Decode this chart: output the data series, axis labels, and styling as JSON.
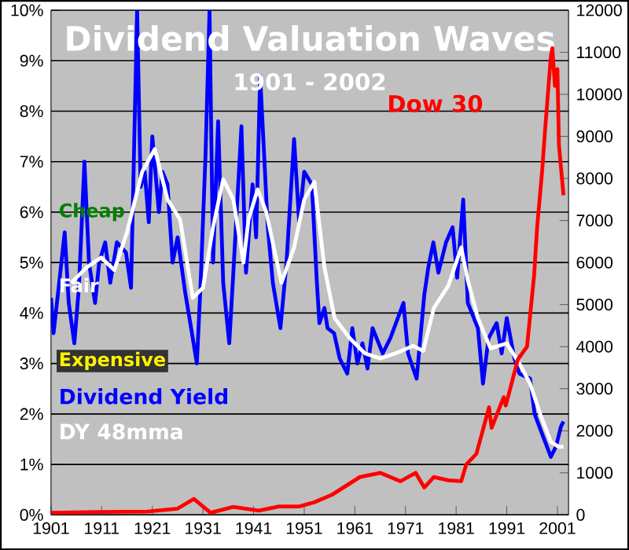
{
  "chart_data": {
    "type": "line",
    "title": "Dividend Valuation Waves",
    "subtitle": "1901 - 2002",
    "annotations": [
      "Cheap",
      "Fair",
      "Expensive"
    ],
    "legend": "left",
    "xlim": [
      1901,
      2003.2
    ],
    "xticks": [
      1901,
      1911,
      1921,
      1931,
      1941,
      1951,
      1961,
      1971,
      1981,
      1991,
      2001
    ],
    "ylim": [
      0,
      10
    ],
    "yticks": [
      {
        "value": 0,
        "label": "0%"
      },
      {
        "value": 1,
        "label": "1%"
      },
      {
        "value": 2,
        "label": "2%"
      },
      {
        "value": 3,
        "label": "3%"
      },
      {
        "value": 4,
        "label": "4%"
      },
      {
        "value": 5,
        "label": "5%"
      },
      {
        "value": 6,
        "label": "6%"
      },
      {
        "value": 7,
        "label": "7%"
      },
      {
        "value": 8,
        "label": "8%"
      },
      {
        "value": 9,
        "label": "9%"
      },
      {
        "value": 10,
        "label": "10%"
      }
    ],
    "y2lim": [
      0,
      12000
    ],
    "y2ticks": [
      0,
      1000,
      2000,
      3000,
      4000,
      5000,
      6000,
      7000,
      8000,
      9000,
      10000,
      11000,
      12000
    ],
    "grid": "y",
    "series": [
      {
        "name": "Dividend Yield",
        "color": "#0000ff",
        "x": [
          1901,
          1901.5,
          1902.5,
          1903.7,
          1904.5,
          1905.6,
          1906.5,
          1907.6,
          1908.5,
          1909.7,
          1910.5,
          1911.7,
          1912.7,
          1914,
          1915.8,
          1916.8,
          1918,
          1918.7,
          1919.5,
          1920.3,
          1921,
          1922.3,
          1923,
          1924,
          1925,
          1926,
          1927.5,
          1928.5,
          1929.8,
          1930.5,
          1931.5,
          1932.3,
          1933,
          1934,
          1935,
          1936.2,
          1937,
          1938.6,
          1939.5,
          1940.8,
          1941.5,
          1942.3,
          1943.8,
          1944.8,
          1946.3,
          1947.5,
          1949,
          1950,
          1951,
          1952.5,
          1953.5,
          1954,
          1955,
          1955.6,
          1956.9,
          1958,
          1959.5,
          1960.5,
          1961.5,
          1962.5,
          1963.5,
          1964.5,
          1966.5,
          1968,
          1970.6,
          1971.5,
          1973.2,
          1974.7,
          1975.5,
          1976.5,
          1977.5,
          1979,
          1980.3,
          1981.2,
          1982.4,
          1983.3,
          1985.3,
          1986.3,
          1987.4,
          1989,
          1990,
          1991,
          1992.5,
          1993.5,
          1995.6,
          1996.5,
          1998,
          1999.7,
          2000.7,
          2001.7,
          2002.2
        ],
        "values": [
          4.3,
          3.6,
          4.5,
          5.6,
          4.2,
          3.4,
          4.5,
          7.0,
          5.0,
          4.2,
          5.0,
          5.4,
          4.6,
          5.4,
          5.2,
          4.5,
          10,
          6.5,
          6.8,
          5.8,
          7.5,
          6.0,
          6.8,
          6.55,
          5.0,
          5.5,
          4.4,
          3.8,
          3.0,
          4.5,
          7.1,
          10,
          5.0,
          7.8,
          4.6,
          3.4,
          4.8,
          7.7,
          4.8,
          6.55,
          5.5,
          8.7,
          5.7,
          4.6,
          3.7,
          5.0,
          7.45,
          5.8,
          6.8,
          6.55,
          4.6,
          3.8,
          4.1,
          3.7,
          3.6,
          3.1,
          2.8,
          3.7,
          3.0,
          3.4,
          2.9,
          3.7,
          3.2,
          3.5,
          4.2,
          3.2,
          2.7,
          4.35,
          4.9,
          5.4,
          4.8,
          5.4,
          5.7,
          4.7,
          6.25,
          4.2,
          3.7,
          2.6,
          3.5,
          3.8,
          3.2,
          3.9,
          3.1,
          2.8,
          2.7,
          2.0,
          1.6,
          1.15,
          1.35,
          1.75,
          1.85
        ]
      },
      {
        "name": "DY 48mma",
        "color": "#ffffff",
        "x": [
          1905,
          1908,
          1910.9,
          1913.5,
          1916,
          1919,
          1921.5,
          1924,
          1926.5,
          1929,
          1931,
          1933,
          1935,
          1937,
          1939,
          1940,
          1941.8,
          1943.5,
          1946.5,
          1949,
          1951,
          1953,
          1955,
          1957,
          1960,
          1963,
          1966,
          1969,
          1972.5,
          1974.5,
          1976.6,
          1979.5,
          1982,
          1983.3,
          1985.3,
          1987.8,
          1991,
          1993.5,
          1995.6,
          1997.6,
          1999.7,
          2001.2,
          2002.2
        ],
        "values": [
          4.6,
          4.9,
          5.1,
          4.85,
          5.6,
          6.8,
          7.25,
          6.25,
          5.85,
          4.3,
          4.5,
          5.7,
          6.65,
          6.25,
          5.0,
          5.85,
          6.45,
          6.0,
          4.6,
          5.3,
          6.25,
          6.6,
          4.9,
          3.9,
          3.5,
          3.2,
          3.1,
          3.2,
          3.35,
          3.25,
          4.1,
          4.55,
          5.3,
          4.65,
          3.9,
          3.3,
          3.4,
          3.0,
          2.6,
          2.0,
          1.45,
          1.35,
          1.35
        ]
      },
      {
        "name": "Dow 30",
        "color": "#ff0000",
        "axis": "y2",
        "x": [
          1901,
          1910,
          1920,
          1926,
          1929.2,
          1932.5,
          1937,
          1942,
          1946,
          1950,
          1953,
          1956.5,
          1962,
          1966,
          1970,
          1973,
          1974.7,
          1976.6,
          1979.5,
          1982,
          1983,
          1985,
          1987.5,
          1988,
          1990.4,
          1990.8,
          1993.2,
          1995,
          1996.4,
          1997,
          1998,
          1998.5,
          1999.7,
          2000,
          2000.5,
          2001,
          2001.3,
          2002.2
        ],
        "values": [
          50,
          70,
          80,
          150,
          380,
          50,
          190,
          100,
          200,
          200,
          300,
          480,
          900,
          1000,
          800,
          1000,
          650,
          900,
          820,
          800,
          1200,
          1450,
          2560,
          2070,
          2800,
          2600,
          3700,
          4000,
          5700,
          6850,
          8200,
          9050,
          10900,
          11100,
          10200,
          10600,
          8800,
          7600
        ]
      }
    ]
  }
}
